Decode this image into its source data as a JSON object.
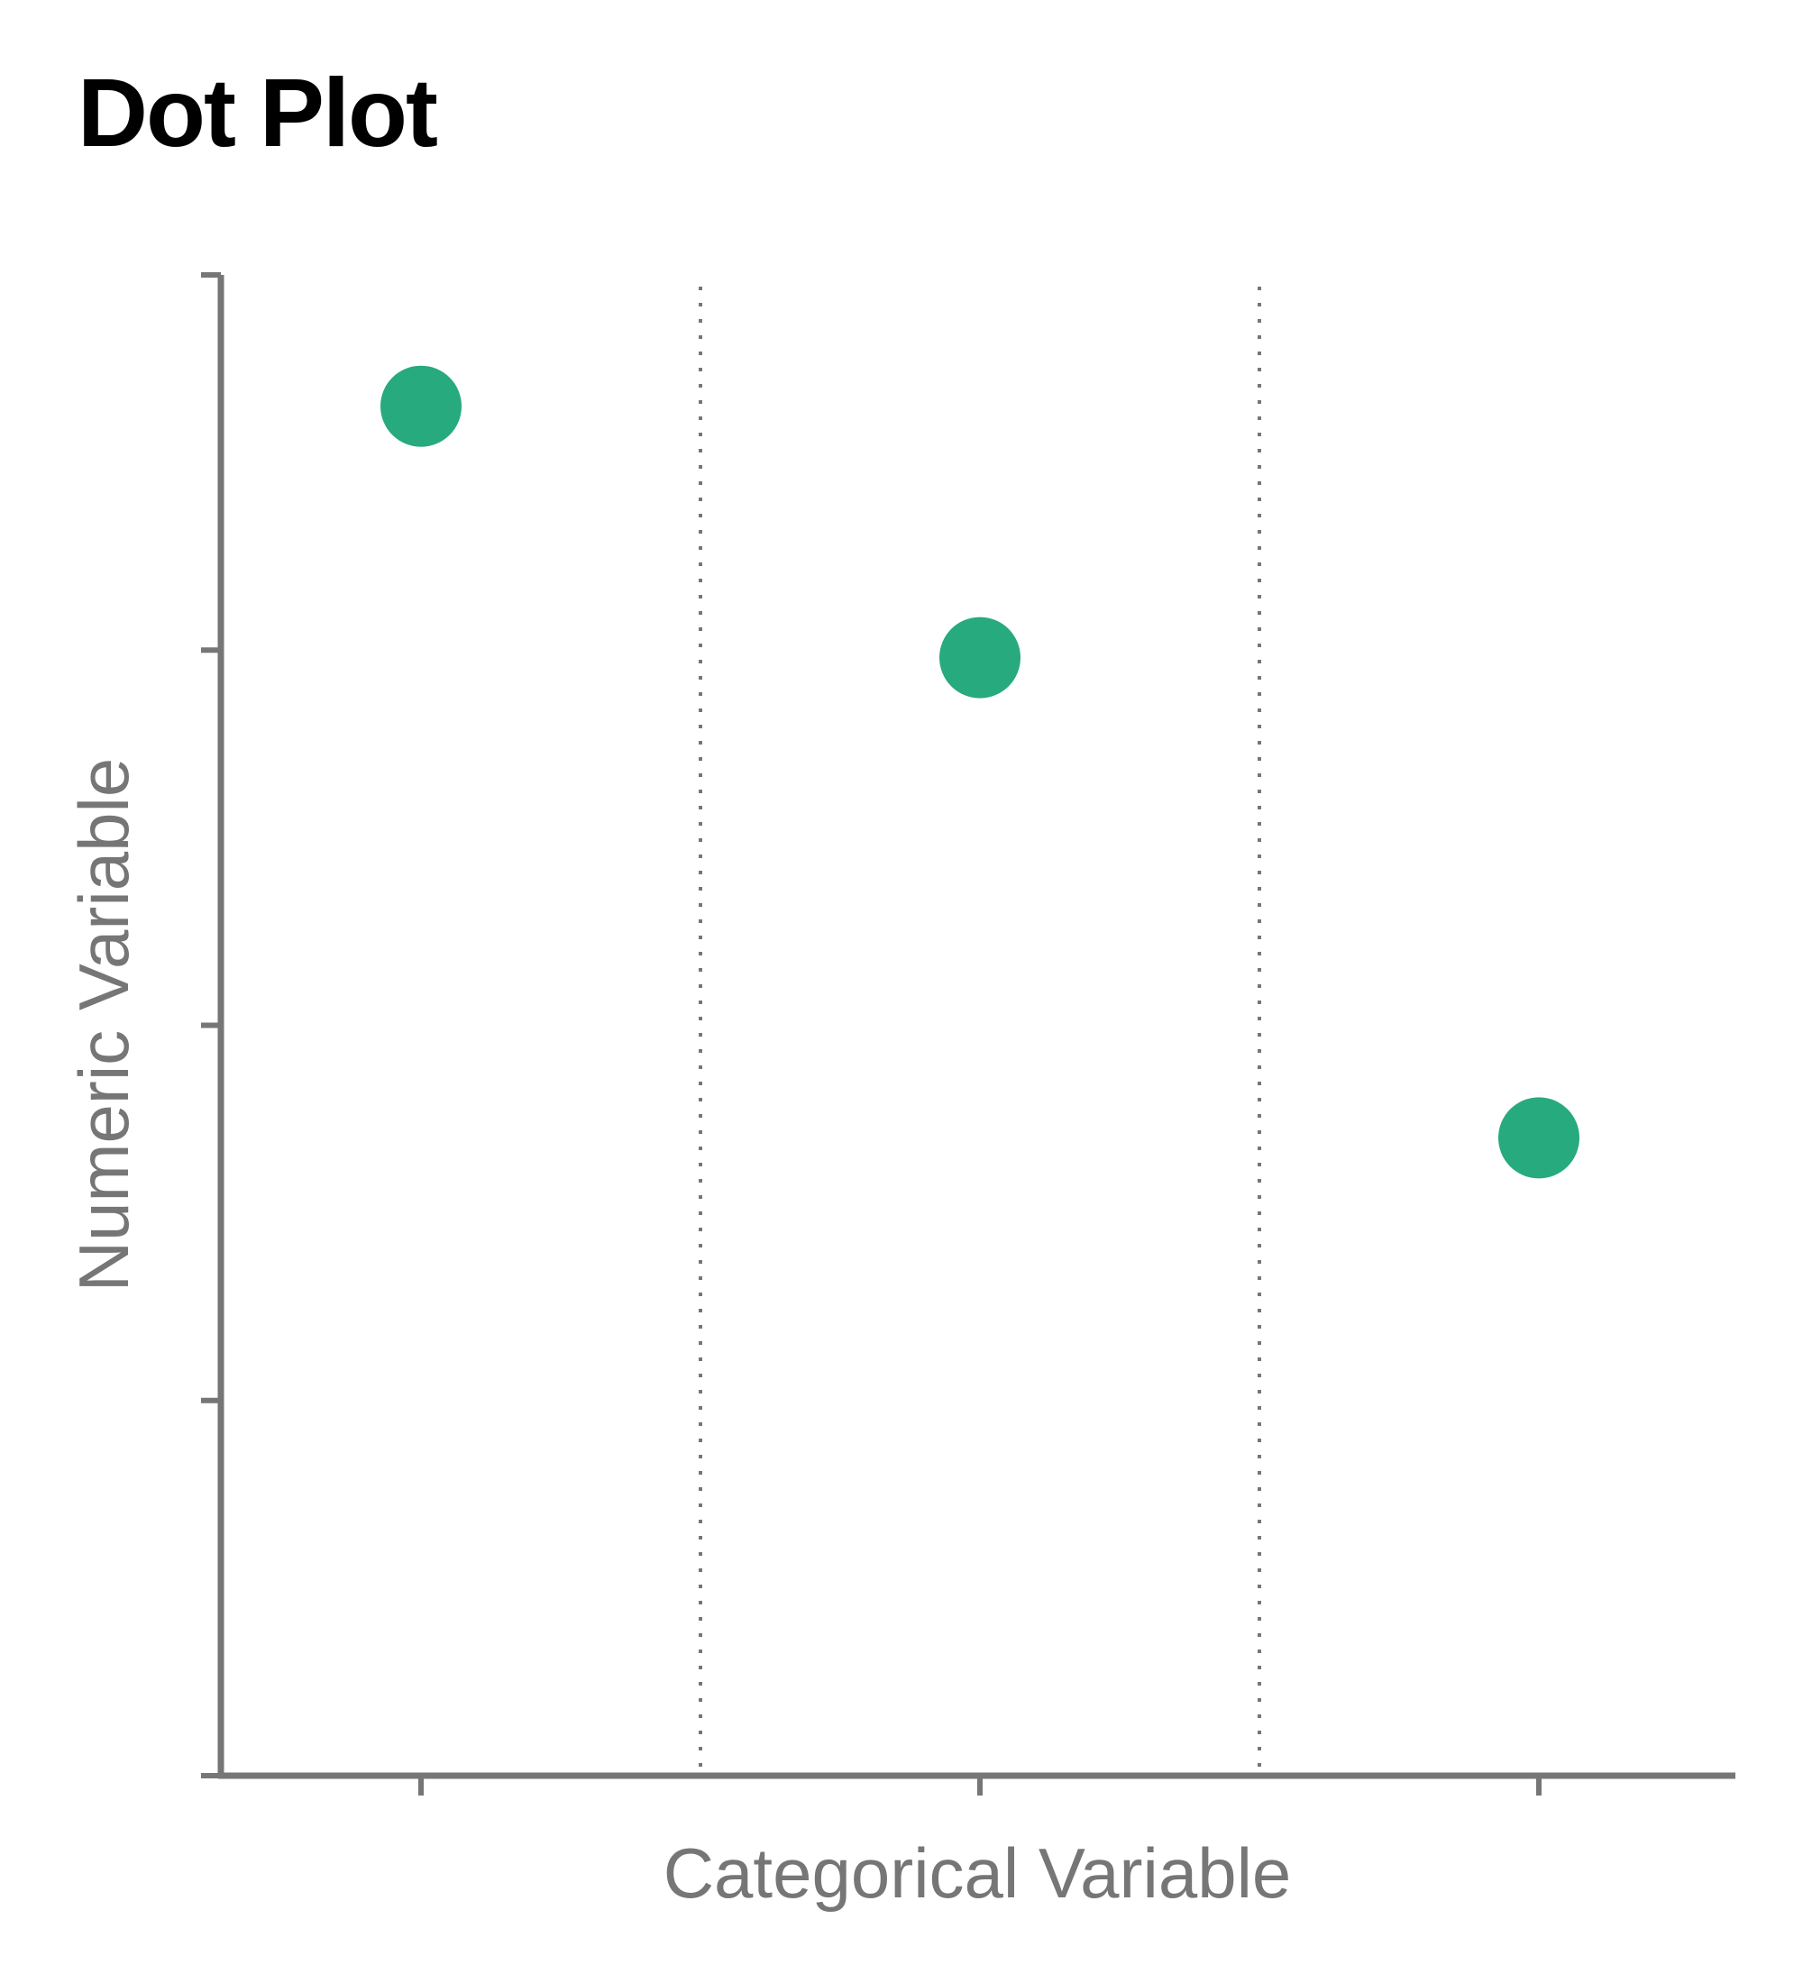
{
  "chart_data": {
    "type": "scatter",
    "title": "Dot Plot",
    "xlabel": "Categorical Variable",
    "ylabel": "Numeric Variable",
    "categories": [
      "",
      "",
      ""
    ],
    "values": [
      3.65,
      2.98,
      1.7
    ],
    "ylim": [
      0,
      4
    ],
    "y_ticks": [
      0,
      1,
      2,
      3,
      4
    ],
    "grid": "dotted vertical separators between categories",
    "legend": "none",
    "colors": {
      "dot": "#27AA7D",
      "axis": "#767676",
      "title": "#000000"
    }
  }
}
